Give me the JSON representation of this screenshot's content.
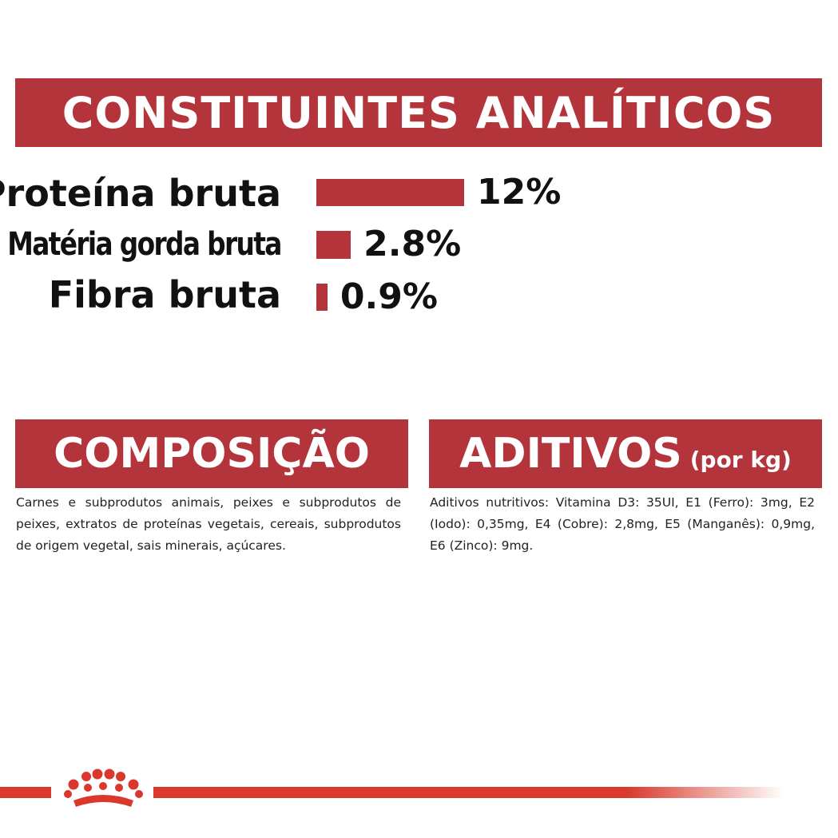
{
  "header": {
    "title": "CONSTITUINTES ANALÍTICOS"
  },
  "chart_data": {
    "type": "bar",
    "orientation": "horizontal",
    "categories": [
      "Proteína bruta",
      "Matéria gorda bruta",
      "Fibra bruta"
    ],
    "values": [
      12,
      2.8,
      0.9
    ],
    "value_labels": [
      "12%",
      "2.8%",
      "0.9%"
    ],
    "unit": "%",
    "title": "",
    "xlabel": "",
    "ylabel": "",
    "grid": false,
    "bar_color": "#b3343a"
  },
  "composition": {
    "title": "COMPOSIÇÃO",
    "text": "Carnes e subprodutos animais, peixes e subprodutos de peixes, extratos de proteínas vegetais, cereais, subprodutos de origem vegetal, sais minerais, açúcares."
  },
  "additives": {
    "title": "ADITIVOS",
    "subtitle": "(por kg)",
    "text": "Aditivos nutritivos: Vitamina D3: 35UI, E1 (Ferro): 3mg, E2 (Iodo): 0,35mg, E4 (Cobre): 2,8mg, E5 (Manganês): 0,9mg, E6 (Zinco): 9mg."
  },
  "colors": {
    "brand_red": "#b3343a",
    "line_red": "#d9382a"
  },
  "logo": {
    "icon": "crown-logo-icon"
  }
}
